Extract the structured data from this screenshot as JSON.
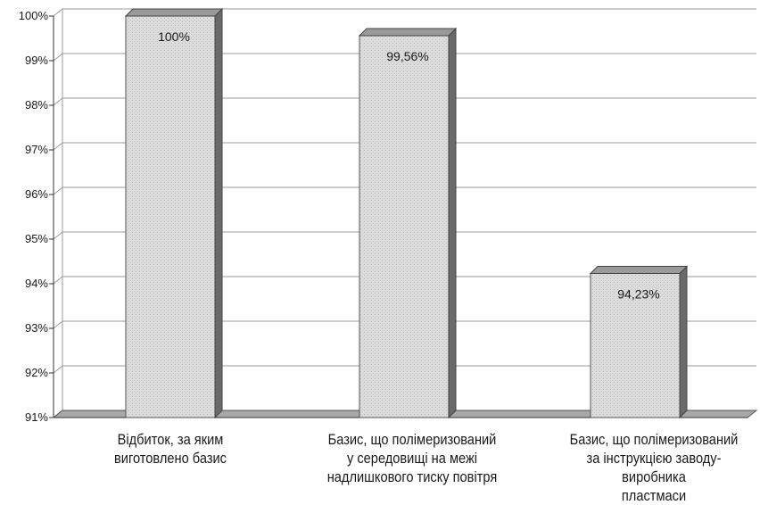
{
  "chart_data": {
    "type": "bar",
    "categories": [
      "Відбиток, за яким\nвиготовлено базис",
      "Базис, що полімеризований\nу середовищі на межі\nнадлишкового тиску повітря",
      "Базис, що полімеризований\nза інструкцією заводу-виробника\nпластмаси"
    ],
    "values": [
      100,
      99.56,
      94.23
    ],
    "data_labels": [
      "100%",
      "99,56%",
      "94,23%"
    ],
    "ylim": [
      91,
      100
    ],
    "yticks": [
      91,
      92,
      93,
      94,
      95,
      96,
      97,
      98,
      99,
      100
    ],
    "ytick_labels": [
      "91%",
      "92%",
      "93%",
      "94%",
      "95%",
      "96%",
      "97%",
      "98%",
      "99%",
      "100%"
    ],
    "grid": true,
    "bar_style": "3d",
    "colors": {
      "bar_face": "#d9d9d9",
      "bar_top": "#9a9a9a",
      "bar_side": "#6a6a6a",
      "grid": "#9a9a9a"
    }
  }
}
